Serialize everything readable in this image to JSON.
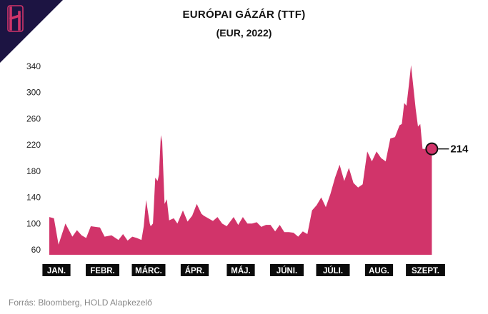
{
  "brand": {
    "logo_letter": "H",
    "logo_icon": "hold-logo-icon",
    "accent": "#d1346a",
    "corner": "#1c1442"
  },
  "chart_data": {
    "type": "area",
    "title": "EURÓPAI GÁZÁR (TTF)",
    "subtitle": "(EUR, 2022)",
    "xlabel": "",
    "ylabel": "",
    "ylim": [
      50,
      350
    ],
    "yticks": [
      60,
      100,
      140,
      180,
      220,
      260,
      300,
      340
    ],
    "months": [
      "JAN.",
      "FEBR.",
      "MÁRC.",
      "ÁPR.",
      "MÁJ.",
      "JÚNI.",
      "JÚLI.",
      "AUG.",
      "SZEPT."
    ],
    "x_range_months": [
      0,
      8.35
    ],
    "grid": false,
    "legend": "none",
    "color": "#d1346a",
    "callout": {
      "value": 214,
      "label": "214"
    },
    "x": [
      0,
      0.1,
      0.2,
      0.35,
      0.5,
      0.6,
      0.7,
      0.8,
      0.9,
      1.0,
      1.1,
      1.2,
      1.35,
      1.5,
      1.6,
      1.7,
      1.8,
      1.9,
      2.0,
      2.05,
      2.1,
      2.18,
      2.2,
      2.25,
      2.3,
      2.35,
      2.38,
      2.42,
      2.45,
      2.5,
      2.55,
      2.6,
      2.7,
      2.78,
      2.9,
      3.0,
      3.1,
      3.2,
      3.3,
      3.35,
      3.45,
      3.55,
      3.65,
      3.75,
      3.85,
      4.0,
      4.1,
      4.2,
      4.3,
      4.4,
      4.5,
      4.6,
      4.7,
      4.8,
      4.9,
      5.0,
      5.1,
      5.2,
      5.3,
      5.4,
      5.5,
      5.6,
      5.7,
      5.8,
      5.9,
      6.0,
      6.1,
      6.2,
      6.3,
      6.4,
      6.5,
      6.6,
      6.7,
      6.8,
      6.9,
      7.0,
      7.1,
      7.2,
      7.3,
      7.4,
      7.5,
      7.6,
      7.65,
      7.7,
      7.75,
      7.8,
      7.85,
      7.95,
      8.0,
      8.05,
      8.1,
      8.15,
      8.2,
      8.25,
      8.3
    ],
    "y": [
      110,
      108,
      68,
      100,
      80,
      90,
      82,
      78,
      96,
      95,
      94,
      80,
      82,
      75,
      84,
      74,
      80,
      78,
      75,
      96,
      136,
      100,
      96,
      100,
      170,
      165,
      175,
      235,
      225,
      130,
      137,
      105,
      108,
      100,
      120,
      103,
      112,
      130,
      115,
      112,
      108,
      104,
      110,
      100,
      96,
      110,
      98,
      110,
      100,
      100,
      102,
      95,
      98,
      98,
      88,
      98,
      87,
      87,
      86,
      80,
      88,
      84,
      120,
      128,
      140,
      125,
      145,
      170,
      190,
      165,
      185,
      162,
      155,
      160,
      210,
      195,
      210,
      200,
      195,
      230,
      232,
      250,
      252,
      284,
      280,
      310,
      342,
      275,
      248,
      252,
      214,
      214,
      214,
      214,
      214
    ]
  },
  "source": "Forrás: Bloomberg, HOLD Alapkezelő"
}
